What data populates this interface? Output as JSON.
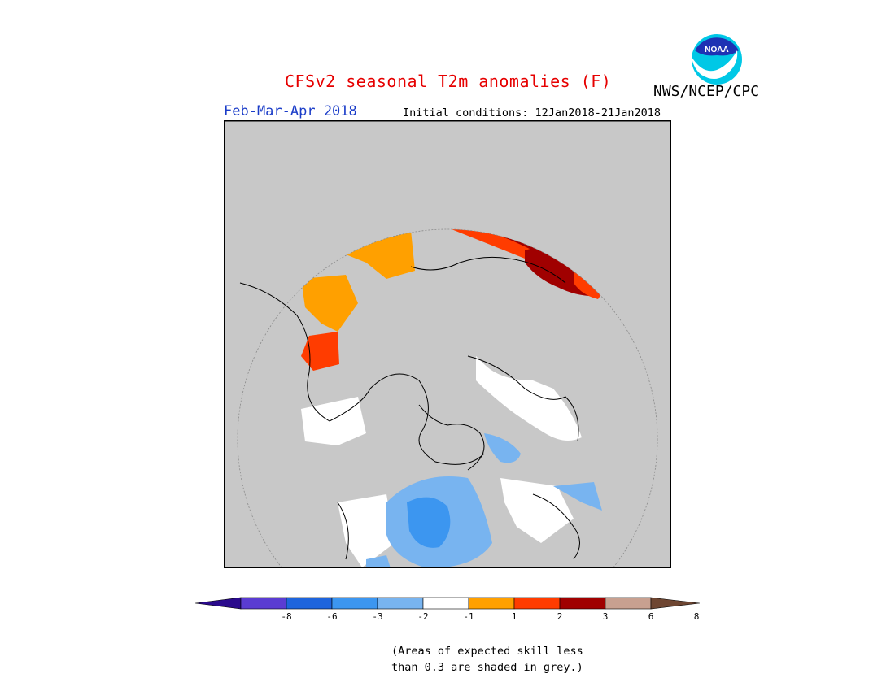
{
  "header": {
    "title": "CFSv2 seasonal T2m anomalies (F)",
    "agency": "NWS/NCEP/CPC",
    "period": "Feb-Mar-Apr 2018",
    "initial_conditions": "Initial conditions: 12Jan2018-21Jan2018"
  },
  "logo": {
    "text": "NOAA",
    "icon": "noaa-logo-icon"
  },
  "map": {
    "projection": "north-polar-stereographic",
    "skill_mask_color": "#c8c8c8",
    "ocean_outside_color": "#c8c8c8"
  },
  "colorbar": {
    "colors": [
      "#2a0a8c",
      "#5a3cd2",
      "#1e64dc",
      "#3c96f0",
      "#78b4f0",
      "#ffffff",
      "#ffa000",
      "#ff3c00",
      "#a00000",
      "#c8a090",
      "#6e4632"
    ],
    "tick_labels": [
      "-8",
      "-6",
      "-3",
      "-2",
      "-1",
      "1",
      "2",
      "3",
      "6",
      "8"
    ]
  },
  "note": {
    "line1": "(Areas of expected skill less",
    "line2": "than 0.3 are shaded in grey.)"
  }
}
